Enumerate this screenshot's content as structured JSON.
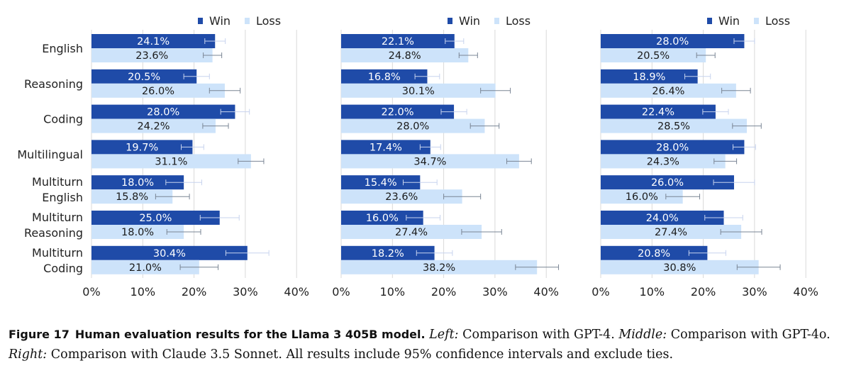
{
  "legend": {
    "win": "Win",
    "loss": "Loss"
  },
  "colors": {
    "win": "#1f4ba8",
    "loss": "#cde3fa",
    "grid": "#d9d9d9",
    "text": "#222222"
  },
  "chart_data": [
    {
      "type": "bar",
      "orientation": "horizontal",
      "comparison": "GPT-4",
      "categories": [
        "English",
        "Reasoning",
        "Coding",
        "Multilingual",
        "Multiturn English",
        "Multiturn Reasoning",
        "Multiturn Coding"
      ],
      "xlim": [
        0,
        40
      ],
      "xticks": [
        "0%",
        "10%",
        "20%",
        "30%",
        "40%"
      ],
      "legend_position": "top-right",
      "grid": "vertical",
      "series": [
        {
          "name": "Win",
          "values": [
            24.1,
            20.5,
            28.0,
            19.7,
            18.0,
            25.0,
            30.4
          ],
          "labels": [
            "24.1%",
            "20.5%",
            "28.0%",
            "19.7%",
            "18.0%",
            "25.0%",
            "30.4%"
          ],
          "err": [
            2.0,
            2.5,
            2.8,
            2.2,
            3.5,
            3.8,
            4.2
          ]
        },
        {
          "name": "Loss",
          "values": [
            23.6,
            26.0,
            24.2,
            31.1,
            15.8,
            18.0,
            21.0
          ],
          "labels": [
            "23.6%",
            "26.0%",
            "24.2%",
            "31.1%",
            "15.8%",
            "18.0%",
            "21.0%"
          ],
          "err": [
            1.8,
            3.0,
            2.5,
            2.5,
            3.3,
            3.3,
            3.7
          ]
        }
      ]
    },
    {
      "type": "bar",
      "orientation": "horizontal",
      "comparison": "GPT-4o",
      "categories": [
        "English",
        "Reasoning",
        "Coding",
        "Multilingual",
        "Multiturn English",
        "Multiturn Reasoning",
        "Multiturn Coding"
      ],
      "xlim": [
        0,
        40
      ],
      "xticks": [
        "0%",
        "10%",
        "20%",
        "30%",
        "40%"
      ],
      "legend_position": "top-right",
      "grid": "vertical",
      "series": [
        {
          "name": "Win",
          "values": [
            22.1,
            16.8,
            22.0,
            17.4,
            15.4,
            16.0,
            18.2
          ],
          "labels": [
            "22.1%",
            "16.8%",
            "22.0%",
            "17.4%",
            "15.4%",
            "16.0%",
            "18.2%"
          ],
          "err": [
            1.8,
            2.4,
            2.5,
            2.0,
            3.3,
            3.3,
            3.5
          ]
        },
        {
          "name": "Loss",
          "values": [
            24.8,
            30.1,
            28.0,
            34.7,
            23.6,
            27.4,
            38.2
          ],
          "labels": [
            "24.8%",
            "30.1%",
            "28.0%",
            "34.7%",
            "23.6%",
            "27.4%",
            "38.2%"
          ],
          "err": [
            1.8,
            2.9,
            2.8,
            2.4,
            3.6,
            3.9,
            4.2
          ]
        }
      ]
    },
    {
      "type": "bar",
      "orientation": "horizontal",
      "comparison": "Claude 3.5 Sonnet",
      "categories": [
        "English",
        "Reasoning",
        "Coding",
        "Multilingual",
        "Multiturn English",
        "Multiturn Reasoning",
        "Multiturn Coding"
      ],
      "xlim": [
        0,
        40
      ],
      "xticks": [
        "0%",
        "10%",
        "20%",
        "30%",
        "40%"
      ],
      "legend_position": "top-right",
      "grid": "vertical",
      "series": [
        {
          "name": "Win",
          "values": [
            28.0,
            18.9,
            22.4,
            28.0,
            26.0,
            24.0,
            20.8
          ],
          "labels": [
            "28.0%",
            "18.9%",
            "22.4%",
            "28.0%",
            "26.0%",
            "24.0%",
            "20.8%"
          ],
          "err": [
            2.0,
            2.5,
            2.5,
            2.2,
            4.0,
            3.7,
            3.6
          ]
        },
        {
          "name": "Loss",
          "values": [
            20.5,
            26.4,
            28.5,
            24.3,
            16.0,
            27.4,
            30.8
          ],
          "labels": [
            "20.5%",
            "26.4%",
            "28.5%",
            "24.3%",
            "16.0%",
            "27.4%",
            "30.8%"
          ],
          "err": [
            1.8,
            2.8,
            2.8,
            2.2,
            3.3,
            4.0,
            4.2
          ]
        }
      ]
    }
  ],
  "caption": {
    "figure_number": "Figure 17",
    "figure_title": "Human evaluation results for the Llama 3 405B model.",
    "left_label": "Left:",
    "left_text": "Comparison with GPT-4.",
    "middle_label": "Middle:",
    "middle_text": "Comparison with GPT-4o.",
    "right_label": "Right:",
    "right_text": "Comparison with Claude 3.5 Sonnet. All results include 95% confidence intervals and exclude ties."
  }
}
